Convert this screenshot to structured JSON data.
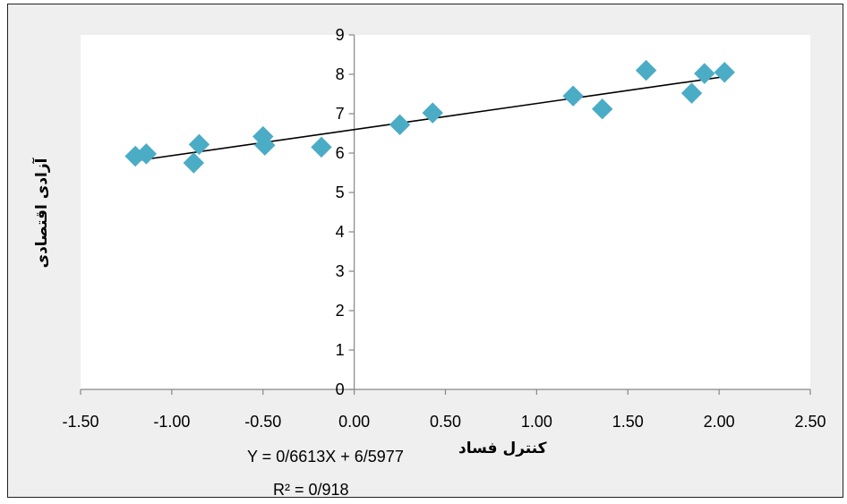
{
  "chart_data": {
    "type": "scatter",
    "title": "",
    "xlabel": "کنترل فساد",
    "ylabel": "آزادی اقتصادی",
    "xlim": [
      -1.5,
      2.5
    ],
    "ylim": [
      0,
      9
    ],
    "x_ticks": [
      "-1.50",
      "-1.00",
      "-0.50",
      "0.00",
      "0.50",
      "1.00",
      "1.50",
      "2.00",
      "2.50"
    ],
    "y_ticks": [
      "0",
      "1",
      "2",
      "3",
      "4",
      "5",
      "6",
      "7",
      "8",
      "9"
    ],
    "grid": false,
    "legend": "none",
    "marker": "diamond",
    "marker_color": "#4bacc6",
    "trendline_color": "#000000",
    "series": [
      {
        "points": [
          {
            "x": -1.2,
            "y": 5.92
          },
          {
            "x": -1.14,
            "y": 5.98
          },
          {
            "x": -0.88,
            "y": 5.75
          },
          {
            "x": -0.85,
            "y": 6.22
          },
          {
            "x": -0.5,
            "y": 6.42
          },
          {
            "x": -0.49,
            "y": 6.2
          },
          {
            "x": -0.18,
            "y": 6.15
          },
          {
            "x": 0.25,
            "y": 6.72
          },
          {
            "x": 0.43,
            "y": 7.02
          },
          {
            "x": 1.2,
            "y": 7.45
          },
          {
            "x": 1.36,
            "y": 7.12
          },
          {
            "x": 1.6,
            "y": 8.1
          },
          {
            "x": 1.85,
            "y": 7.52
          },
          {
            "x": 1.92,
            "y": 8.02
          },
          {
            "x": 2.03,
            "y": 8.05
          }
        ]
      }
    ],
    "trendline": {
      "x_range": [
        -1.2,
        2.03
      ],
      "equation": "Y = 0/6613X + 6/5977",
      "r_squared": "R² = 0/918"
    }
  }
}
